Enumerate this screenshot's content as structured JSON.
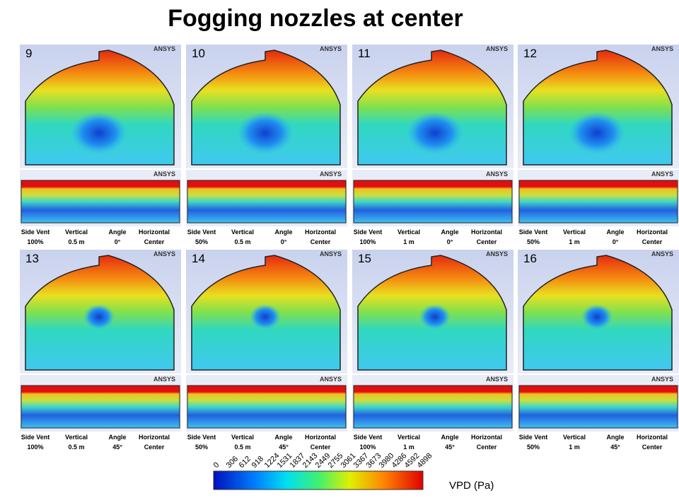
{
  "title": "Fogging nozzles at center",
  "logo": "ANSYS",
  "caption_headers": [
    "Side Vent",
    "Vertical",
    "Angle",
    "Horizontal"
  ],
  "panels": [
    {
      "number": "9",
      "side_vent": "100%",
      "vertical": "0.5 m",
      "angle": "0°",
      "horizontal": "Center"
    },
    {
      "number": "10",
      "side_vent": "50%",
      "vertical": "0.5 m",
      "angle": "0°",
      "horizontal": "Center"
    },
    {
      "number": "11",
      "side_vent": "100%",
      "vertical": "1 m",
      "angle": "0°",
      "horizontal": "Center"
    },
    {
      "number": "12",
      "side_vent": "50%",
      "vertical": "1 m",
      "angle": "0°",
      "horizontal": "Center"
    },
    {
      "number": "13",
      "side_vent": "100%",
      "vertical": "0.5 m",
      "angle": "45°",
      "horizontal": "Center"
    },
    {
      "number": "14",
      "side_vent": "50%",
      "vertical": "0.5 m",
      "angle": "45°",
      "horizontal": "Center"
    },
    {
      "number": "15",
      "side_vent": "100%",
      "vertical": "1 m",
      "angle": "45°",
      "horizontal": "Center"
    },
    {
      "number": "16",
      "side_vent": "50%",
      "vertical": "1 m",
      "angle": "45°",
      "horizontal": "Center"
    }
  ],
  "colorbar": {
    "ticks": [
      0,
      306,
      612,
      918,
      1224,
      1531,
      1837,
      2143,
      2449,
      2755,
      3061,
      3367,
      3673,
      3980,
      4286,
      4592,
      4898
    ],
    "label": "VPD (Pa)"
  }
}
